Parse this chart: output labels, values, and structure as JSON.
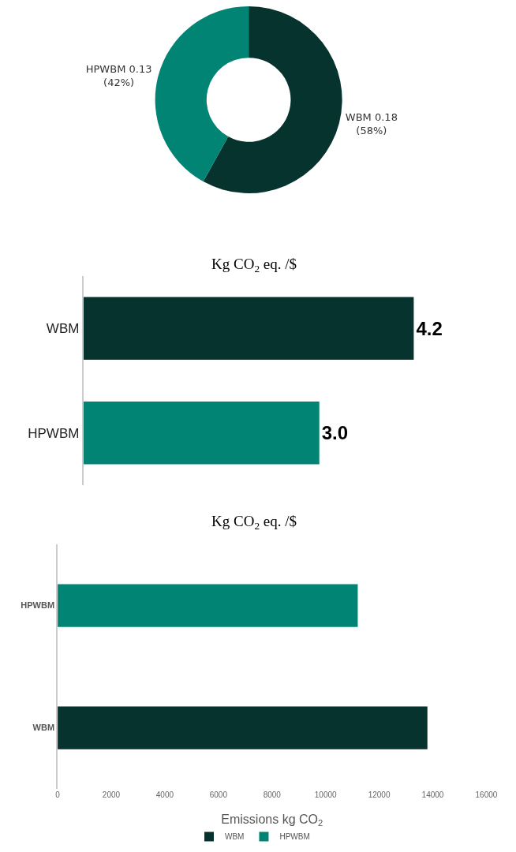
{
  "chart_data": [
    {
      "type": "donut",
      "categories": [
        "WBM",
        "HPWBM"
      ],
      "values": [
        0.18,
        0.13
      ],
      "colors": [
        "#06332d",
        "#028474"
      ],
      "value_labels": [
        "0.18\n(58%)",
        "0.13\n(42%)"
      ]
    },
    {
      "type": "bar",
      "title": "Kg CO$_{2}$ eq. /$",
      "orientation": "horizontal",
      "categories": [
        "WBM",
        "HPWBM"
      ],
      "values": [
        4.2,
        3.0
      ],
      "colors": [
        "#06332d",
        "#028474"
      ],
      "value_labels": [
        "4.2",
        "3.0"
      ]
    },
    {
      "type": "bar",
      "title": "Kg CO$_{2}$ eq. /$",
      "orientation": "horizontal",
      "xlabel": "Emissions kg CO$_{2}$",
      "categories": [
        "HPWBM",
        "WBM"
      ],
      "series": [
        {
          "name": "WBM",
          "color": "#06332d",
          "values": [
            null,
            13800
          ]
        },
        {
          "name": "HPWBM",
          "color": "#028474",
          "values": [
            11200,
            null
          ]
        }
      ],
      "xlim": [
        0,
        16000
      ],
      "xticks": [
        0,
        2000,
        4000,
        6000,
        8000,
        10000,
        12000,
        14000,
        16000
      ],
      "grid": false,
      "legend": "bottom"
    }
  ]
}
